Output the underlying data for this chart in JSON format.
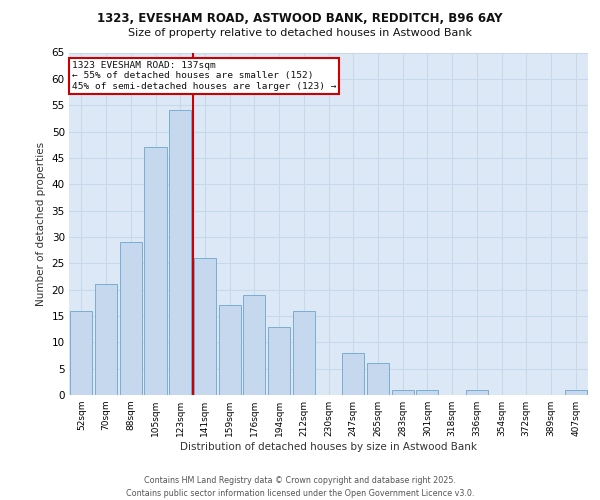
{
  "title1": "1323, EVESHAM ROAD, ASTWOOD BANK, REDDITCH, B96 6AY",
  "title2": "Size of property relative to detached houses in Astwood Bank",
  "xlabel": "Distribution of detached houses by size in Astwood Bank",
  "ylabel": "Number of detached properties",
  "categories": [
    "52sqm",
    "70sqm",
    "88sqm",
    "105sqm",
    "123sqm",
    "141sqm",
    "159sqm",
    "176sqm",
    "194sqm",
    "212sqm",
    "230sqm",
    "247sqm",
    "265sqm",
    "283sqm",
    "301sqm",
    "318sqm",
    "336sqm",
    "354sqm",
    "372sqm",
    "389sqm",
    "407sqm"
  ],
  "values": [
    16,
    21,
    29,
    47,
    54,
    26,
    17,
    19,
    13,
    16,
    0,
    8,
    6,
    1,
    1,
    0,
    1,
    0,
    0,
    0,
    1
  ],
  "bar_color": "#c5d8ee",
  "bar_edge_color": "#7aadd4",
  "annotation_text": "1323 EVESHAM ROAD: 137sqm\n← 55% of detached houses are smaller (152)\n45% of semi-detached houses are larger (123) →",
  "annotation_box_color": "#ffffff",
  "annotation_box_edge": "#cc0000",
  "line_color": "#cc0000",
  "ylim": [
    0,
    65
  ],
  "yticks": [
    0,
    5,
    10,
    15,
    20,
    25,
    30,
    35,
    40,
    45,
    50,
    55,
    60,
    65
  ],
  "grid_color": "#c8d8ea",
  "background_color": "#dce8f5",
  "footer_text": "Contains HM Land Registry data © Crown copyright and database right 2025.\nContains public sector information licensed under the Open Government Licence v3.0.",
  "fig_bg_color": "#ffffff",
  "title1_fontsize": 8.5,
  "title2_fontsize": 8.0,
  "ylabel_text": "Number of detached properties"
}
